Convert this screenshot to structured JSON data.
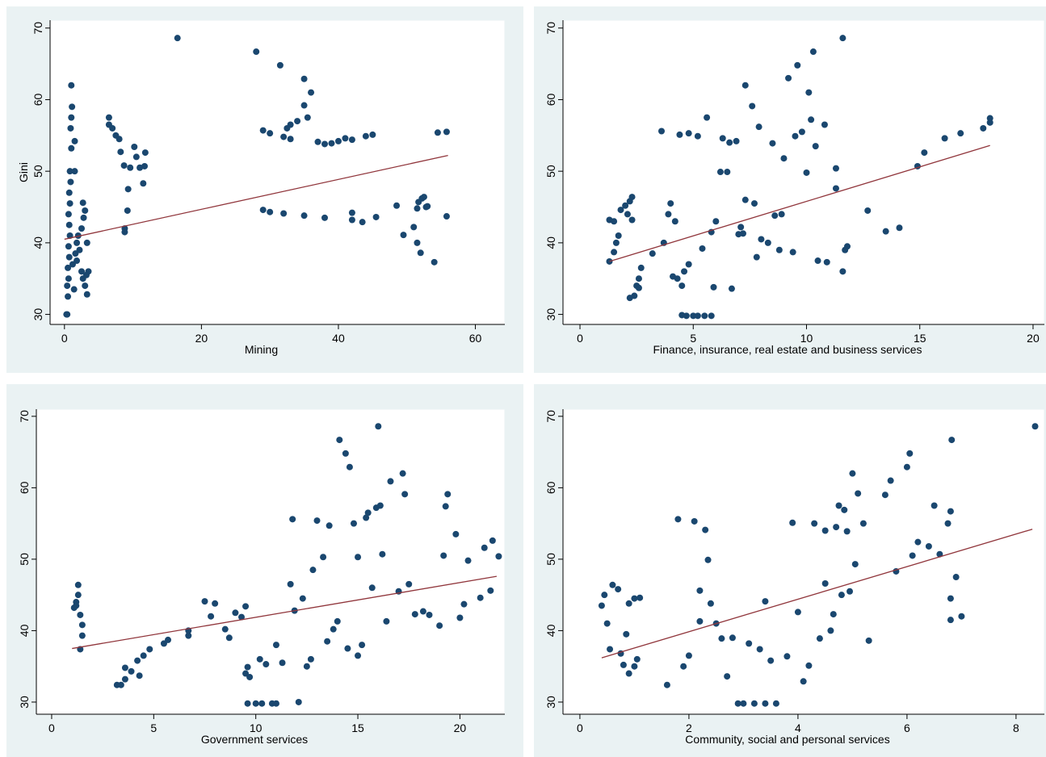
{
  "chart_data": [
    {
      "type": "scatter",
      "x_label": "Mining",
      "y_label": "Gini",
      "xlim": [
        -2.1,
        64.3
      ],
      "ylim": [
        28.6,
        71.1
      ],
      "xticks": [
        0,
        20,
        40,
        60
      ],
      "yticks": [
        30,
        40,
        50,
        60,
        70
      ],
      "points": {
        "color": "#1a476f",
        "x": [
          0.3,
          0.4,
          0.5,
          0.4,
          0.6,
          0.5,
          0.7,
          0.6,
          0.8,
          0.7,
          0.6,
          0.8,
          0.7,
          0.9,
          0.8,
          1.0,
          0.9,
          1.0,
          1.1,
          1.0,
          1.5,
          1.5,
          1.2,
          1.6,
          1.8,
          2,
          2.2,
          2.5,
          2.7,
          3,
          3.2,
          3.5,
          2.5,
          2.8,
          3,
          2.7,
          3.3,
          1.4,
          3.3,
          1.8,
          6.5,
          6.5,
          7,
          7.5,
          8,
          8.2,
          8.7,
          9.3,
          9.2,
          8.8,
          8.8,
          9.6,
          10.2,
          10.5,
          11,
          11.5,
          11.8,
          11.7,
          16.5,
          28,
          31.5,
          35,
          36,
          35,
          35.5,
          34,
          33,
          32.5,
          29,
          30,
          32,
          33,
          37,
          38,
          39,
          40,
          41,
          42,
          44,
          45,
          54.5,
          55.8,
          29,
          30,
          32,
          35,
          38,
          42,
          42,
          43.5,
          45.5,
          48.5,
          49.5,
          51,
          51.5,
          51.7,
          52.2,
          52.5,
          53,
          51.5,
          52,
          54,
          55.8,
          52.8
        ],
        "values": [
          30,
          30,
          32.5,
          34,
          35,
          36.5,
          38,
          39.5,
          41,
          42.5,
          44,
          45.5,
          47,
          48.5,
          50,
          53.2,
          56,
          57.5,
          59,
          62,
          54.2,
          50,
          37,
          38.5,
          40,
          41,
          39,
          36,
          35,
          34,
          35.5,
          36,
          42,
          43.5,
          44.5,
          45.6,
          40,
          33.5,
          32.8,
          37.5,
          57.5,
          56.5,
          56,
          55,
          54.5,
          52.7,
          50.8,
          47.5,
          44.5,
          42,
          41.5,
          50.5,
          53.4,
          52,
          50.5,
          48.3,
          52.6,
          50.7,
          68.6,
          66.7,
          64.8,
          62.9,
          61,
          59.2,
          57.5,
          57,
          56.5,
          56,
          55.7,
          55.3,
          54.8,
          54.5,
          54.1,
          53.8,
          53.9,
          54.2,
          54.6,
          54.4,
          54.9,
          55.1,
          55.4,
          55.5,
          44.6,
          44.3,
          44.1,
          43.8,
          43.5,
          44.2,
          43.2,
          42.9,
          43.6,
          45.2,
          41.1,
          42.2,
          44.8,
          45.7,
          46.2,
          46.4,
          45.1,
          40,
          38.6,
          37.3,
          43.7,
          45
        ]
      },
      "fit": {
        "color": "#90353b",
        "x": [
          0,
          56
        ],
        "values": [
          40.5,
          52.2
        ]
      }
    },
    {
      "type": "scatter",
      "x_label": "Finance, insurance, real estate and business services",
      "xlim": [
        -0.75,
        20.5
      ],
      "ylim": [
        28.6,
        71.1
      ],
      "xticks": [
        0,
        5,
        10,
        15,
        20
      ],
      "yticks": [
        30,
        40,
        50,
        60,
        70
      ],
      "points": {
        "color": "#1a476f",
        "x": [
          1.3,
          1.5,
          1.6,
          1.5,
          1.3,
          1.7,
          1.8,
          2,
          2.2,
          2.3,
          2.1,
          2.3,
          2.2,
          2.4,
          2.5,
          2.6,
          2.7,
          2.6,
          3.2,
          3.6,
          3.7,
          3.9,
          4,
          4.2,
          4.1,
          4.3,
          4.5,
          4.6,
          4.8,
          4.5,
          4.7,
          5,
          5.2,
          5.5,
          5.8,
          4.4,
          4.8,
          5.2,
          5.6,
          5.8,
          6,
          6.2,
          6.5,
          6.3,
          6.6,
          6.9,
          7,
          7.2,
          7.3,
          7.3,
          7.6,
          7.7,
          7.8,
          7.9,
          8,
          8.3,
          8.5,
          8.6,
          8.8,
          9,
          9.2,
          9.5,
          9.6,
          9.8,
          10,
          10.1,
          10.2,
          10.3,
          10.4,
          10.5,
          10.8,
          10.9,
          11.3,
          11.3,
          11.6,
          11.6,
          11.7,
          11.8,
          12.7,
          13.5,
          14.1,
          14.9,
          15.2,
          16.1,
          16.8,
          17.8,
          18.1,
          18.1,
          6.7,
          5.9,
          5.4,
          8.9,
          9.4,
          7.1
        ],
        "values": [
          43.2,
          43,
          40,
          38.7,
          37.4,
          41,
          44.6,
          45.2,
          45.8,
          46.4,
          44,
          43.2,
          32.3,
          32.6,
          34,
          35,
          36.5,
          33.7,
          38.5,
          55.6,
          40,
          44,
          45.5,
          43,
          35.3,
          35,
          34,
          36,
          37,
          29.9,
          29.8,
          29.8,
          29.8,
          29.8,
          29.8,
          55.1,
          55.3,
          54.9,
          57.5,
          41.5,
          43,
          49.9,
          49.9,
          54.6,
          54,
          54.2,
          41.2,
          41.3,
          46,
          62,
          59.1,
          45.5,
          38,
          56.2,
          40.5,
          40,
          53.9,
          43.8,
          39,
          51.8,
          63,
          54.9,
          64.8,
          55.5,
          49.8,
          61,
          57.2,
          66.7,
          53.5,
          37.5,
          56.5,
          37.3,
          50.4,
          47.6,
          68.6,
          36,
          39,
          39.5,
          44.5,
          41.6,
          42.1,
          50.7,
          52.6,
          54.6,
          55.3,
          56,
          57.4,
          56.8,
          33.6,
          33.8,
          39.2,
          44,
          38.7,
          42.2
        ]
      },
      "fit": {
        "color": "#90353b",
        "x": [
          1.3,
          18.1
        ],
        "values": [
          37.4,
          53.6
        ]
      }
    },
    {
      "type": "scatter",
      "x_label": "Government services",
      "xlim": [
        -0.75,
        22.2
      ],
      "ylim": [
        28.3,
        71.0
      ],
      "xticks": [
        0,
        5,
        10,
        15,
        20
      ],
      "yticks": [
        30,
        40,
        50,
        60,
        70
      ],
      "points": {
        "color": "#1a476f",
        "x": [
          1.1,
          1.2,
          1.3,
          1.3,
          1.2,
          1.4,
          1.5,
          1.5,
          1.4,
          3.2,
          3.4,
          3.6,
          3.6,
          3.9,
          4.2,
          4.3,
          4.5,
          4.8,
          5.5,
          5.7,
          6.7,
          6.7,
          7.5,
          7.8,
          8,
          8.5,
          8.7,
          9,
          9.3,
          9.5,
          9.5,
          9.6,
          9.7,
          9.6,
          10,
          10.3,
          10.8,
          11,
          10.2,
          10.5,
          11,
          11.3,
          11.7,
          11.8,
          11.9,
          12.3,
          12.1,
          12.5,
          12.8,
          13,
          13.3,
          13.6,
          13.8,
          14,
          14.1,
          14.4,
          14.6,
          14.8,
          15,
          15.2,
          15.4,
          15.5,
          15.7,
          15.9,
          16,
          16.1,
          16.2,
          16.4,
          16.6,
          17.2,
          17.3,
          17.5,
          17.8,
          18.2,
          18.5,
          19,
          19.2,
          19.3,
          19.4,
          19.8,
          20,
          20.2,
          20.4,
          21,
          21.2,
          21.5,
          21.6,
          21.9,
          14.5,
          15,
          13.5,
          12.7,
          17
        ],
        "values": [
          43.2,
          44,
          45,
          46.4,
          43.5,
          42.2,
          40.8,
          39.3,
          37.4,
          32.4,
          32.4,
          33.2,
          34.8,
          34.3,
          35.8,
          33.7,
          36.5,
          37.4,
          38.2,
          38.7,
          39.3,
          40,
          44.1,
          42,
          43.8,
          40.2,
          39,
          42.5,
          41.9,
          43.4,
          34,
          34.9,
          33.5,
          29.8,
          29.8,
          29.8,
          29.8,
          29.8,
          36,
          35.3,
          38,
          35.5,
          46.5,
          55.6,
          42.8,
          44.5,
          30,
          35,
          48.5,
          55.4,
          50.3,
          54.7,
          40.2,
          41.3,
          66.7,
          64.8,
          62.9,
          55,
          50.3,
          38,
          55.8,
          56.5,
          46,
          57.2,
          68.6,
          57.5,
          50.7,
          41.3,
          60.9,
          62,
          59.1,
          46.5,
          42.3,
          42.7,
          42.2,
          40.7,
          50.5,
          57.4,
          59.1,
          53.5,
          41.8,
          43.7,
          49.8,
          44.6,
          51.6,
          45.6,
          52.6,
          50.4,
          37.5,
          36.5,
          38.5,
          36,
          45.5
        ]
      },
      "fit": {
        "color": "#90353b",
        "x": [
          1,
          21.8
        ],
        "values": [
          37.5,
          47.6
        ]
      }
    },
    {
      "type": "scatter",
      "x_label": "Community, social and personal services",
      "xlim": [
        -0.31,
        8.52
      ],
      "ylim": [
        28.3,
        71.0
      ],
      "xticks": [
        0,
        2,
        4,
        6,
        8
      ],
      "yticks": [
        30,
        40,
        50,
        60,
        70
      ],
      "points": {
        "color": "#1a476f",
        "x": [
          0.4,
          0.45,
          0.5,
          0.55,
          0.6,
          0.7,
          0.75,
          0.8,
          0.9,
          0.85,
          0.9,
          1,
          1.1,
          1,
          1.05,
          1.6,
          1.8,
          1.9,
          2,
          2.1,
          2.2,
          2.2,
          2.3,
          2.35,
          2.4,
          2.5,
          2.6,
          2.7,
          2.8,
          2.9,
          3,
          3.2,
          3.4,
          3.6,
          3.1,
          3.3,
          3.4,
          3.5,
          3.8,
          3.9,
          4,
          4.1,
          4.2,
          4.3,
          4.4,
          4.5,
          4.6,
          4.7,
          4.75,
          4.8,
          4.85,
          4.9,
          5,
          5.05,
          5.1,
          5.2,
          5.3,
          5.6,
          5.7,
          5.8,
          6,
          6.05,
          6.1,
          6.2,
          6.4,
          6.5,
          6.6,
          6.75,
          6.8,
          6.82,
          6.8,
          6.8,
          6.9,
          7,
          8.35,
          4.65,
          4.5,
          4.95
        ],
        "values": [
          43.5,
          45,
          41,
          37.4,
          46.4,
          45.8,
          36.8,
          35.2,
          34,
          39.5,
          43.8,
          44.5,
          44.6,
          35,
          36,
          32.4,
          55.6,
          35,
          36.5,
          55.3,
          45.6,
          41.3,
          54.1,
          49.9,
          43.8,
          41,
          38.9,
          33.6,
          39,
          29.8,
          29.8,
          29.8,
          29.8,
          29.8,
          38.2,
          37.4,
          44.1,
          35.8,
          36.4,
          55.1,
          42.6,
          32.9,
          35.1,
          55,
          38.9,
          46.6,
          40,
          54.5,
          57.5,
          45,
          56.9,
          53.9,
          62,
          49.3,
          59.2,
          55,
          38.6,
          59,
          61,
          48.3,
          62.9,
          64.8,
          50.5,
          52.4,
          51.8,
          57.5,
          50.7,
          55,
          56.7,
          66.7,
          44.5,
          41.5,
          47.5,
          42,
          68.6,
          42.3,
          54,
          45.5
        ]
      },
      "fit": {
        "color": "#90353b",
        "x": [
          0.4,
          8.3
        ],
        "values": [
          36.2,
          54.2
        ]
      }
    }
  ]
}
